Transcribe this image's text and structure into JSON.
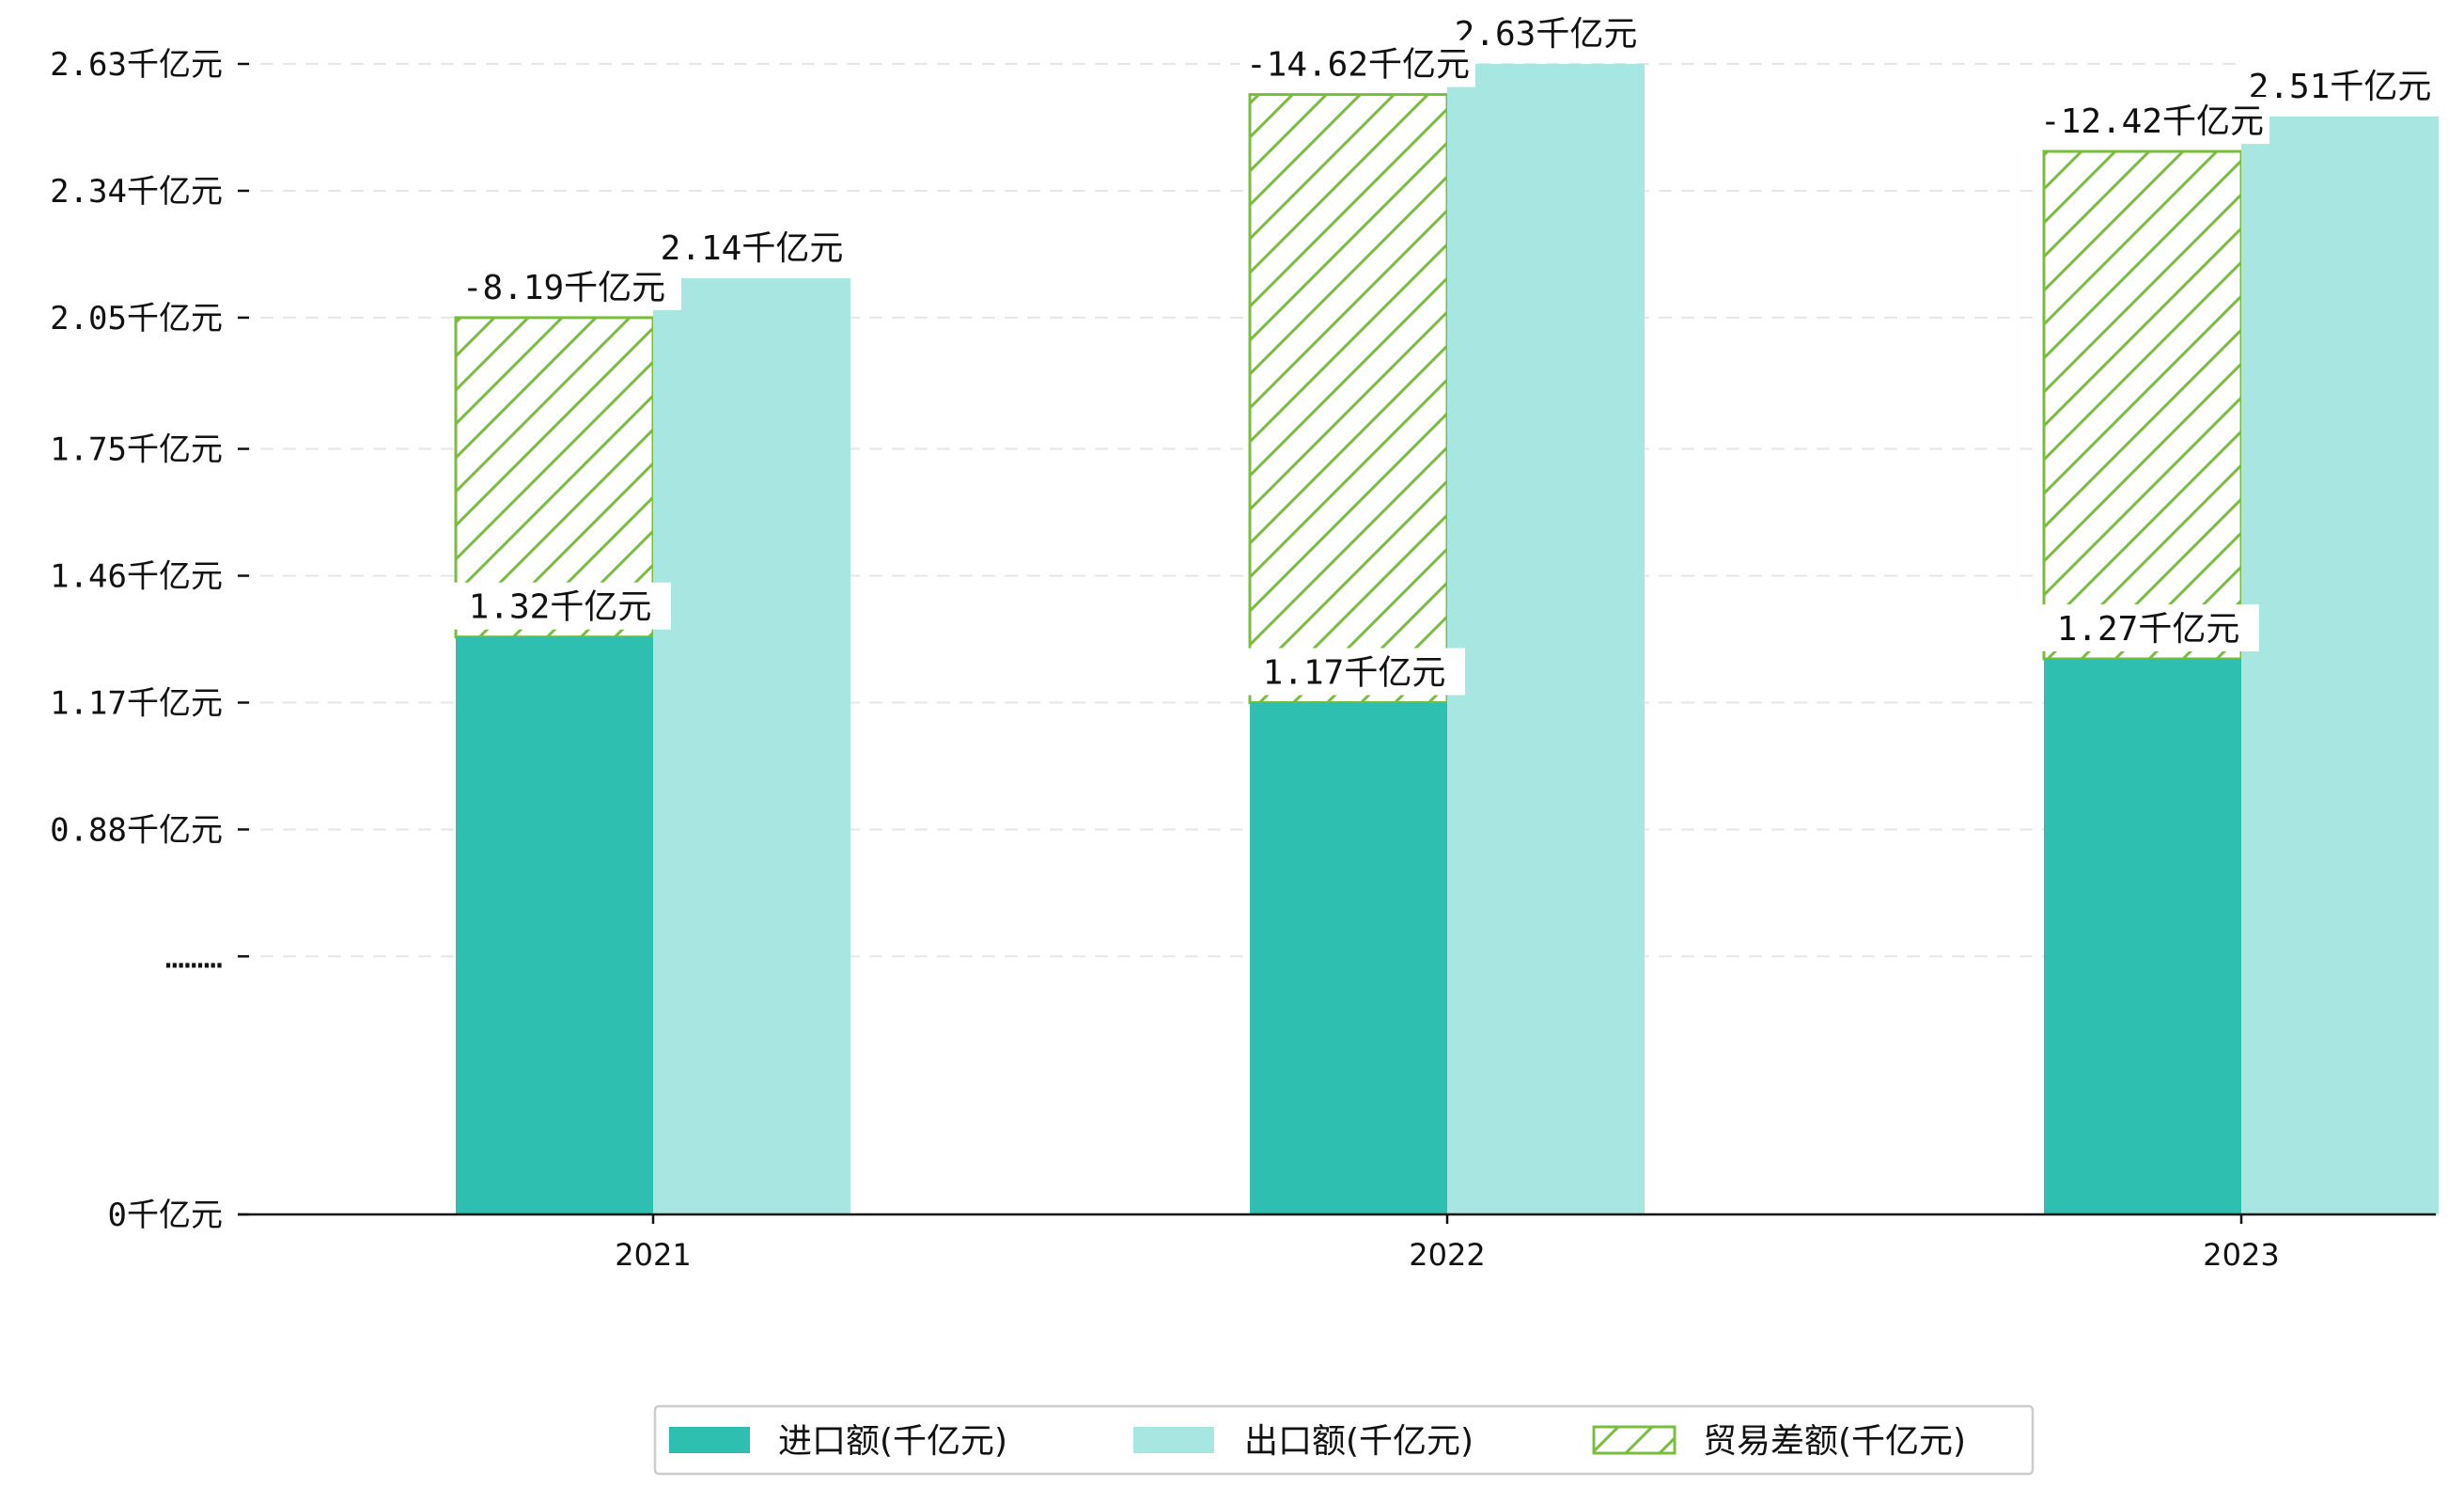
{
  "chart_data": {
    "type": "bar",
    "title": "",
    "xlabel": "",
    "ylabel": "",
    "categories": [
      "2021",
      "2022",
      "2023"
    ],
    "series": [
      {
        "name": "进口额(千亿元)",
        "values": [
          1.32,
          1.17,
          1.27
        ],
        "color": "#2fbfb0",
        "pattern": "solid",
        "labels": [
          "1.32千亿元",
          "1.17千亿元",
          "1.27千亿元"
        ]
      },
      {
        "name": "贸易差额(千亿元)",
        "values": [
          -8.19,
          -14.62,
          -12.42
        ],
        "color": "#78be3c",
        "pattern": "hatch",
        "stacked_on": "进口额(千亿元)",
        "segment_top": [
          2.05,
          2.56,
          2.43
        ],
        "labels": [
          "-8.19千亿元",
          "-14.62千亿元",
          "-12.42千亿元"
        ]
      },
      {
        "name": "出口额(千亿元)",
        "values": [
          2.14,
          2.63,
          2.51
        ],
        "color": "#a8e6e1",
        "pattern": "solid",
        "labels": [
          "2.14千亿元",
          "2.63千亿元",
          "2.51千亿元"
        ]
      }
    ],
    "yticks": [
      {
        "value": 0,
        "label": "0千亿元"
      },
      {
        "value": 0.59,
        "label": "………"
      },
      {
        "value": 0.88,
        "label": "0.88千亿元"
      },
      {
        "value": 1.17,
        "label": "1.17千亿元"
      },
      {
        "value": 1.46,
        "label": "1.46千亿元"
      },
      {
        "value": 1.75,
        "label": "1.75千亿元"
      },
      {
        "value": 2.05,
        "label": "2.05千亿元"
      },
      {
        "value": 2.34,
        "label": "2.34千亿元"
      },
      {
        "value": 2.63,
        "label": "2.63千亿元"
      }
    ],
    "ylim": [
      0,
      2.63
    ],
    "grid": true,
    "legend": {
      "placement": "bottom-center",
      "order": [
        "进口额(千亿元)",
        "出口额(千亿元)",
        "贸易差额(千亿元)"
      ]
    }
  }
}
